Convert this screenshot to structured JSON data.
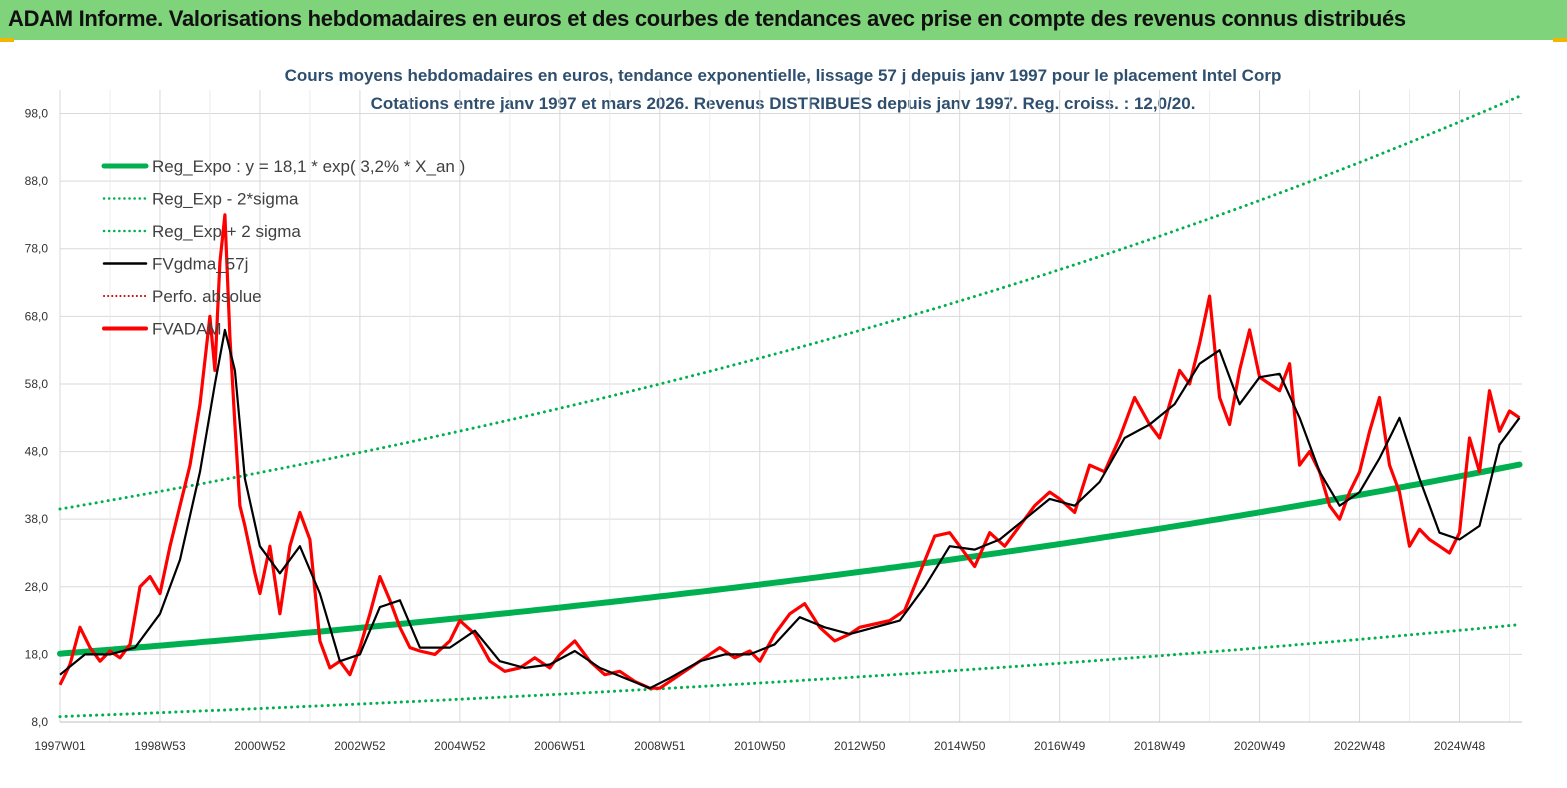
{
  "banner": {
    "title": "ADAM Informe. Valorisations hebdomadaires en euros et des courbes de tendances avec prise en compte des revenus connus distribués"
  },
  "colors": {
    "banner_bg": "#7fd37a",
    "reg_expo": "#00b050",
    "band": "#00b050",
    "fvgdma": "#000000",
    "perfo": "#c00000",
    "fvadam": "#ff0000"
  },
  "chart_data": {
    "type": "line",
    "title": "Cours moyens hebdomadaires en euros, tendance exponentielle, lissage 57 j depuis janv 1997 pour le placement Intel Corp",
    "subtitle": "Cotations entre janv 1997 et mars 2026. Revenus DISTRIBUES depuis janv 1997. Reg. croiss. : 12,0/20.",
    "xlabel": "",
    "ylabel": "",
    "xlim": [
      1997.0,
      2026.25
    ],
    "ylim": [
      8.0,
      100.0
    ],
    "grid": true,
    "legend_position": "top-left",
    "y_ticks": [
      "8,0",
      "18,0",
      "28,0",
      "38,0",
      "48,0",
      "58,0",
      "68,0",
      "78,0",
      "88,0",
      "98,0"
    ],
    "y_tick_values": [
      8,
      18,
      28,
      38,
      48,
      58,
      68,
      78,
      88,
      98
    ],
    "x_ticks": [
      "1997W01",
      "1998W53",
      "2000W52",
      "2002W52",
      "2004W52",
      "2006W51",
      "2008W51",
      "2010W50",
      "2012W50",
      "2014W50",
      "2016W49",
      "2018W49",
      "2020W49",
      "2022W48",
      "2024W48"
    ],
    "x_tick_values": [
      1997.0,
      1999.0,
      2001.0,
      2003.0,
      2005.0,
      2007.0,
      2009.0,
      2011.0,
      2013.0,
      2015.0,
      2017.0,
      2019.0,
      2021.0,
      2023.0,
      2025.0
    ],
    "legend": [
      {
        "label": "Reg_Expo : y = 18,1 * exp( 3,2% *  X_an )",
        "style": "thick"
      },
      {
        "label": "Reg_Exp - 2*sigma",
        "style": "dotted"
      },
      {
        "label": "Reg_Exp + 2 sigma",
        "style": "dotted"
      },
      {
        "label": "FVgdma_57j",
        "style": "solid"
      },
      {
        "label": "Perfo. absolue",
        "style": "dotted-red"
      },
      {
        "label": "FVADAM",
        "style": "thick-red"
      }
    ],
    "trend": {
      "a": 18.1,
      "rate": 0.032,
      "lower_a": 8.8,
      "upper_a": 39.5
    },
    "series": [
      {
        "name": "FVADAM",
        "x": [
          1997.0,
          1997.2,
          1997.4,
          1997.6,
          1997.8,
          1998.0,
          1998.2,
          1998.4,
          1998.6,
          1998.8,
          1999.0,
          1999.2,
          1999.4,
          1999.6,
          1999.8,
          2000.0,
          2000.1,
          2000.2,
          2000.3,
          2000.4,
          2000.5,
          2000.6,
          2000.7,
          2000.8,
          2000.9,
          2001.0,
          2001.2,
          2001.4,
          2001.6,
          2001.8,
          2002.0,
          2002.2,
          2002.4,
          2002.6,
          2002.8,
          2003.0,
          2003.2,
          2003.4,
          2003.6,
          2003.8,
          2004.0,
          2004.2,
          2004.5,
          2004.8,
          2005.0,
          2005.3,
          2005.6,
          2005.9,
          2006.2,
          2006.5,
          2006.8,
          2007.0,
          2007.3,
          2007.6,
          2007.9,
          2008.2,
          2008.5,
          2008.8,
          2009.0,
          2009.3,
          2009.6,
          2009.9,
          2010.2,
          2010.5,
          2010.8,
          2011.0,
          2011.3,
          2011.6,
          2011.9,
          2012.2,
          2012.5,
          2012.8,
          2013.0,
          2013.3,
          2013.6,
          2013.9,
          2014.2,
          2014.5,
          2014.8,
          2015.0,
          2015.3,
          2015.6,
          2015.9,
          2016.2,
          2016.5,
          2016.8,
          2017.0,
          2017.3,
          2017.6,
          2017.9,
          2018.2,
          2018.5,
          2018.8,
          2019.0,
          2019.2,
          2019.4,
          2019.6,
          2019.8,
          2020.0,
          2020.2,
          2020.4,
          2020.6,
          2020.8,
          2021.0,
          2021.2,
          2021.4,
          2021.6,
          2021.8,
          2022.0,
          2022.2,
          2022.4,
          2022.6,
          2022.8,
          2023.0,
          2023.2,
          2023.4,
          2023.6,
          2023.8,
          2024.0,
          2024.2,
          2024.4,
          2024.6,
          2024.8,
          2025.0,
          2025.2,
          2025.4,
          2025.6,
          2025.8,
          2026.0,
          2026.2
        ],
        "values": [
          13.5,
          16.5,
          22.0,
          19.0,
          17.0,
          18.5,
          17.5,
          19.5,
          28.0,
          29.5,
          27.0,
          34.0,
          40.0,
          46.0,
          55.0,
          68.0,
          60.0,
          76.0,
          83.0,
          65.0,
          52.0,
          40.0,
          37.0,
          33.5,
          30.0,
          27.0,
          34.0,
          24.0,
          34.0,
          39.0,
          35.0,
          20.0,
          16.0,
          17.0,
          15.0,
          19.0,
          24.0,
          29.5,
          26.0,
          22.0,
          19.0,
          18.5,
          18.0,
          20.0,
          23.0,
          21.0,
          17.0,
          15.5,
          16.0,
          17.5,
          16.0,
          18.0,
          20.0,
          17.0,
          15.0,
          15.5,
          14.0,
          13.0,
          13.0,
          14.5,
          16.0,
          17.5,
          19.0,
          17.5,
          18.5,
          17.0,
          21.0,
          24.0,
          25.5,
          22.0,
          20.0,
          21.0,
          22.0,
          22.5,
          23.0,
          24.5,
          30.0,
          35.5,
          36.0,
          34.0,
          31.0,
          36.0,
          34.0,
          37.0,
          40.0,
          42.0,
          41.0,
          39.0,
          46.0,
          45.0,
          50.0,
          56.0,
          52.0,
          50.0,
          55.0,
          60.0,
          58.0,
          64.0,
          71.0,
          56.0,
          52.0,
          60.0,
          66.0,
          59.0,
          58.0,
          57.0,
          61.0,
          46.0,
          48.0,
          45.0,
          40.0,
          38.0,
          42.0,
          45.0,
          51.0,
          56.0,
          46.0,
          42.0,
          34.0,
          36.5,
          35.0,
          34.0,
          33.0,
          36.0,
          50.0,
          45.0,
          57.0,
          51.0,
          54.0,
          53.0
        ]
      },
      {
        "name": "FVgdma_57j",
        "x": [
          1997.0,
          1997.5,
          1998.0,
          1998.5,
          1999.0,
          1999.4,
          1999.8,
          2000.1,
          2000.3,
          2000.5,
          2000.7,
          2001.0,
          2001.4,
          2001.8,
          2002.2,
          2002.6,
          2003.0,
          2003.4,
          2003.8,
          2004.2,
          2004.8,
          2005.3,
          2005.8,
          2006.3,
          2006.8,
          2007.3,
          2007.8,
          2008.3,
          2008.8,
          2009.2,
          2009.8,
          2010.3,
          2010.8,
          2011.3,
          2011.8,
          2012.3,
          2012.8,
          2013.3,
          2013.8,
          2014.3,
          2014.8,
          2015.3,
          2015.8,
          2016.3,
          2016.8,
          2017.3,
          2017.8,
          2018.3,
          2018.8,
          2019.3,
          2019.8,
          2020.2,
          2020.6,
          2021.0,
          2021.4,
          2021.8,
          2022.2,
          2022.6,
          2023.0,
          2023.4,
          2023.8,
          2024.2,
          2024.6,
          2025.0,
          2025.4,
          2025.8,
          2026.2
        ],
        "values": [
          15.0,
          18.0,
          18.0,
          19.0,
          24.0,
          32.0,
          45.0,
          58.0,
          66.0,
          60.0,
          44.0,
          34.0,
          30.0,
          34.0,
          27.0,
          17.0,
          18.0,
          25.0,
          26.0,
          19.0,
          19.0,
          21.5,
          17.0,
          16.0,
          16.5,
          18.5,
          16.0,
          14.5,
          13.0,
          14.5,
          17.0,
          18.0,
          18.0,
          19.5,
          23.5,
          22.0,
          21.0,
          22.0,
          23.0,
          28.0,
          34.0,
          33.5,
          35.0,
          38.0,
          41.0,
          40.0,
          43.5,
          50.0,
          52.0,
          55.0,
          61.0,
          63.0,
          55.0,
          59.0,
          59.5,
          53.0,
          45.0,
          40.0,
          42.0,
          47.0,
          53.0,
          44.0,
          36.0,
          35.0,
          37.0,
          49.0,
          53.0
        ]
      }
    ]
  }
}
